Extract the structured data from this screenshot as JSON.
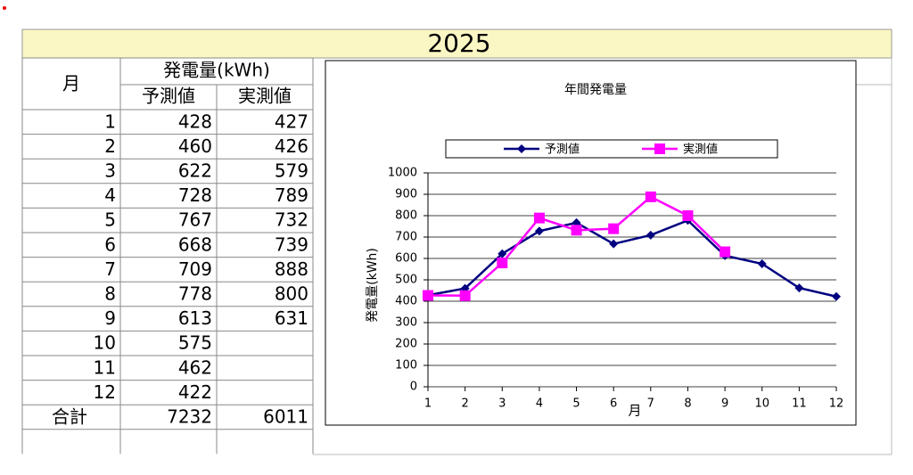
{
  "sheet": {
    "title": "2025",
    "header": {
      "month": "月",
      "group": "発電量(kWh)",
      "forecast": "予測値",
      "actual": "実測値"
    },
    "rows": [
      [
        1,
        428,
        427
      ],
      [
        2,
        460,
        426
      ],
      [
        3,
        622,
        579
      ],
      [
        4,
        728,
        789
      ],
      [
        5,
        767,
        732
      ],
      [
        6,
        668,
        739
      ],
      [
        7,
        709,
        888
      ],
      [
        8,
        778,
        800
      ],
      [
        9,
        613,
        631
      ],
      [
        10,
        575,
        null
      ],
      [
        11,
        462,
        null
      ],
      [
        12,
        422,
        null
      ]
    ],
    "total": [
      "合計",
      7232,
      6011
    ]
  },
  "chart_data": {
    "type": "line",
    "title": "年間発電量",
    "x_label": "月",
    "y_label": "発電量(kWh)",
    "categories": [
      "1",
      "2",
      "3",
      "4",
      "5",
      "6",
      "7",
      "8",
      "9",
      "10",
      "11",
      "12"
    ],
    "series": [
      {
        "name": "予測値",
        "color": "#000080",
        "marker": "diamond",
        "values": [
          428,
          460,
          622,
          728,
          767,
          668,
          709,
          778,
          613,
          575,
          462,
          422
        ]
      },
      {
        "name": "実測値",
        "color": "#ff00ff",
        "marker": "square",
        "values": [
          427,
          426,
          579,
          789,
          732,
          739,
          888,
          800,
          631,
          null,
          null,
          null
        ]
      }
    ],
    "ylim": [
      0,
      1000
    ],
    "yticks": [
      0,
      100,
      200,
      300,
      400,
      500,
      600,
      700,
      800,
      900,
      1000
    ],
    "grid": true,
    "legend": "top"
  }
}
